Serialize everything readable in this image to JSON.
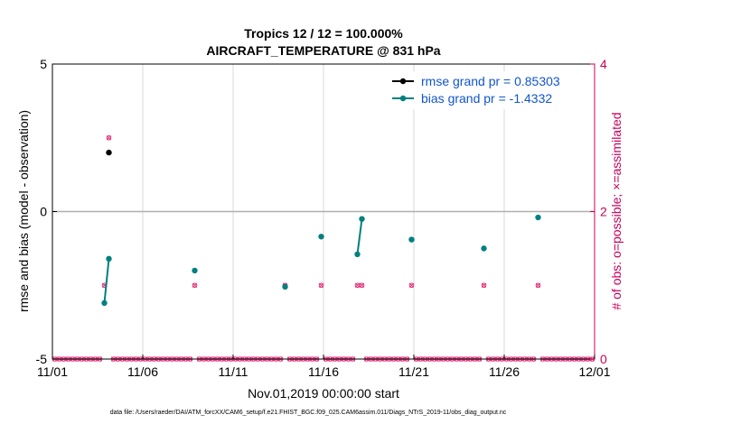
{
  "chart_data": {
    "type": "line",
    "title_line1": "Tropics 12 / 12 = 100.000%",
    "title_line2": "AIRCRAFT_TEMPERATURE @ 831 hPa",
    "xlabel": "Nov.01,2019 00:00:00 start",
    "ylabel": "rmse and bias (model - observation)",
    "ylabel_right": "# of obs: o=possible; ×=assimilated",
    "footnote": "data file: /Users/raeder/DAI/ATM_forcXX/CAM6_setup/f.e21.FHIST_BGC.f09_025.CAM6assim.011/Diags_NTrS_2019-11/obs_diag_output.nc",
    "xlim": [
      0,
      30
    ],
    "ylim": [
      -5,
      5
    ],
    "ylim_right": [
      0,
      4
    ],
    "x_ticks": [
      0,
      5,
      10,
      15,
      20,
      25,
      30
    ],
    "x_tick_labels": [
      "11/01",
      "11/06",
      "11/11",
      "11/16",
      "11/21",
      "11/26",
      "12/01"
    ],
    "y_ticks": [
      -5,
      0,
      5
    ],
    "y_tick_labels": [
      "-5",
      "0",
      "5"
    ],
    "y_right_ticks": [
      0,
      2,
      4
    ],
    "y_right_tick_labels": [
      "0",
      "2",
      "4"
    ],
    "colors": {
      "rmse": "#000000",
      "bias": "#008080",
      "obs": "#e0307a",
      "right_axis": "#c8005a",
      "legend_text": "#1155cc",
      "zero_line": "#b0b0b0",
      "grid": "#d9d9d9"
    },
    "legend": {
      "placement": "top-right",
      "entries": [
        {
          "key": "rmse",
          "label": "rmse grand pr = 0.85303"
        },
        {
          "key": "bias",
          "label": "bias grand pr = -1.4332"
        }
      ]
    },
    "series": [
      {
        "name": "rmse",
        "segments": [
          [
            [
              3.125,
              2.0
            ]
          ]
        ]
      },
      {
        "name": "bias",
        "segments": [
          [
            [
              2.875,
              -3.1
            ],
            [
              3.125,
              -1.6
            ]
          ],
          [
            [
              7.875,
              -2.0
            ]
          ],
          [
            [
              12.875,
              -2.55
            ]
          ],
          [
            [
              14.875,
              -0.85
            ]
          ],
          [
            [
              16.875,
              -1.45
            ],
            [
              17.125,
              -0.25
            ]
          ],
          [
            [
              19.875,
              -0.95
            ]
          ],
          [
            [
              23.875,
              -1.25
            ]
          ],
          [
            [
              26.875,
              -0.2
            ]
          ]
        ]
      }
    ],
    "obs_counts": {
      "x_start": 0.125,
      "x_step": 0.25,
      "nonzero": [
        {
          "x": 2.875,
          "possible": 1,
          "assimilated": 1
        },
        {
          "x": 3.125,
          "possible": 3,
          "assimilated": 3
        },
        {
          "x": 7.875,
          "possible": 1,
          "assimilated": 1
        },
        {
          "x": 12.875,
          "possible": 1,
          "assimilated": 1
        },
        {
          "x": 14.875,
          "possible": 1,
          "assimilated": 1
        },
        {
          "x": 16.875,
          "possible": 1,
          "assimilated": 1
        },
        {
          "x": 17.125,
          "possible": 1,
          "assimilated": 1
        },
        {
          "x": 19.875,
          "possible": 1,
          "assimilated": 1
        },
        {
          "x": 23.875,
          "possible": 1,
          "assimilated": 1
        },
        {
          "x": 26.875,
          "possible": 1,
          "assimilated": 1
        }
      ]
    }
  }
}
